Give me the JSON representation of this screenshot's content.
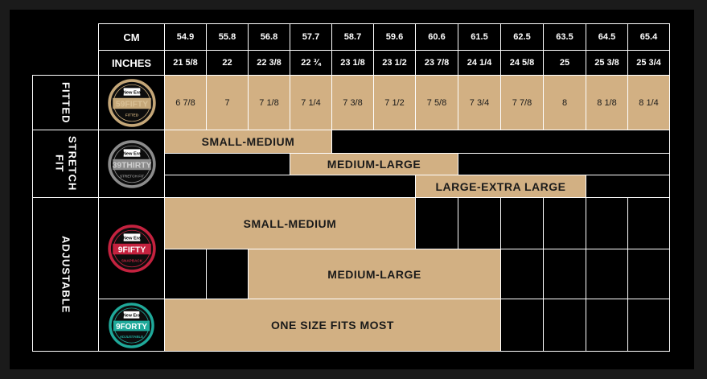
{
  "header": {
    "cm_label": "CM",
    "inches_label": "INCHES",
    "cm": [
      "54.9",
      "55.8",
      "56.8",
      "57.7",
      "58.7",
      "59.6",
      "60.6",
      "61.5",
      "62.5",
      "63.5",
      "64.5",
      "65.4"
    ],
    "inches": [
      "21 5/8",
      "22",
      "22 3/8",
      "22 ¾",
      "23 1/8",
      "23 1/2",
      "23 7/8",
      "24 1/4",
      "24 5/8",
      "25",
      "25 3/8",
      "25 3/4"
    ]
  },
  "fitted": {
    "label": "FITTED",
    "badge": {
      "brand": "New Era",
      "model": "59FIFTY",
      "sub": "FITTED",
      "ring": "#c5a778",
      "text_color": "#d9c095"
    },
    "sizes": [
      "6 7/8",
      "7",
      "7 1/8",
      "7 1/4",
      "7 3/8",
      "7 1/2",
      "7 5/8",
      "7 3/4",
      "7 7/8",
      "8",
      "8 1/8",
      "8 1/4"
    ]
  },
  "stretch": {
    "label": "STRETCH\nFIT",
    "badge": {
      "brand": "New Era",
      "model": "39THIRTY",
      "sub": "STRETCH FIT",
      "ring": "#8c8c8c",
      "text_color": "#cfcfcf"
    },
    "bands": [
      "SMALL-MEDIUM",
      "MEDIUM-LARGE",
      "LARGE-EXTRA LARGE"
    ]
  },
  "adjustable": {
    "label": "ADJUSTABLE",
    "snapback_badge": {
      "brand": "New Era",
      "model": "9FIFTY",
      "sub": "SNAPBACK",
      "ring": "#c4223f",
      "text_color": "#ffffff"
    },
    "adjustable_badge": {
      "brand": "New Era",
      "model": "9FORTY",
      "sub": "ADJUSTABLE",
      "ring": "#1fa99a",
      "text_color": "#ffffff"
    },
    "bands": [
      "SMALL-MEDIUM",
      "MEDIUM-LARGE",
      "ONE SIZE FITS MOST"
    ]
  },
  "colors": {
    "tan": "#d2b083",
    "background": "#000000",
    "grid": "#ffffff"
  }
}
